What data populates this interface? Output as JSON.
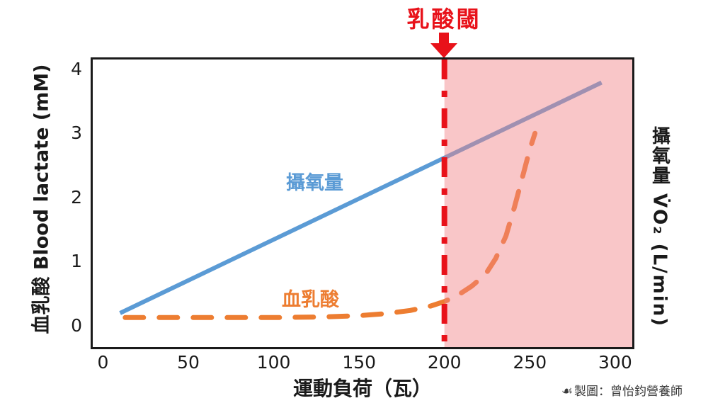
{
  "chart_data": {
    "type": "line",
    "title": "乳酸閾",
    "x_label": "運動負荷（瓦）",
    "y_left_label": "血乳酸  Blood lactate (mM)",
    "y_right_label": "攝氧量 V̇O₂ (L/min)",
    "x_ticks": [
      0,
      50,
      100,
      150,
      200,
      250,
      300
    ],
    "y_ticks": [
      0,
      1,
      2,
      3,
      4
    ],
    "x_range": [
      -6,
      310
    ],
    "y_range": [
      -0.33,
      4.15
    ],
    "grid": false,
    "legend_position": "inline-labels",
    "series": [
      {
        "name": "攝氧量",
        "style": "solid",
        "color": "#5B9BD5",
        "points": [
          [
            10,
            0.2
          ],
          [
            292,
            3.79
          ]
        ]
      },
      {
        "name": "血乳酸",
        "style": "dashed",
        "color": "#ED7D31",
        "points": [
          [
            13,
            0.13
          ],
          [
            40,
            0.13
          ],
          [
            70,
            0.13
          ],
          [
            100,
            0.13
          ],
          [
            130,
            0.14
          ],
          [
            150,
            0.16
          ],
          [
            165,
            0.19
          ],
          [
            180,
            0.24
          ],
          [
            192,
            0.31
          ],
          [
            200,
            0.38
          ],
          [
            208,
            0.48
          ],
          [
            216,
            0.62
          ],
          [
            224,
            0.8
          ],
          [
            230,
            1.05
          ],
          [
            236,
            1.4
          ],
          [
            241,
            1.85
          ],
          [
            246,
            2.35
          ],
          [
            250,
            2.75
          ],
          [
            253,
            3.0
          ]
        ]
      }
    ],
    "threshold_line": {
      "label": "乳酸閾",
      "x": 200,
      "color": "#E8121A",
      "style": "dash-dot"
    },
    "shaded_region": {
      "x_from": 200,
      "x_to": 310,
      "color": "#F28388",
      "opacity": 0.46
    }
  },
  "attribution": {
    "icon": "☙",
    "text": "製圖：曾怡鈞營養師"
  }
}
